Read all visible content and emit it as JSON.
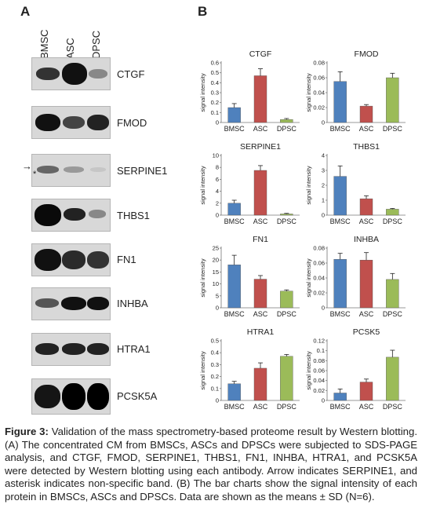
{
  "panels": {
    "a": "A",
    "b": "B"
  },
  "lanes": [
    "BMSC",
    "ASC",
    "DPSC"
  ],
  "blots": [
    {
      "protein": "CTGF"
    },
    {
      "protein": "FMOD"
    },
    {
      "protein": "SERPINE1",
      "arrow": "→",
      "asterisk": "*"
    },
    {
      "protein": "THBS1"
    },
    {
      "protein": "FN1"
    },
    {
      "protein": "INHBA"
    },
    {
      "protein": "HTRA1"
    },
    {
      "protein": "PCSK5A"
    }
  ],
  "colors": {
    "BMSC": "#4f81bd",
    "ASC": "#c0504d",
    "DPSC": "#9bbb59"
  },
  "chart_data": [
    {
      "type": "bar",
      "title": "CTGF",
      "ylabel": "signal intensity",
      "categories": [
        "BMSC",
        "ASC",
        "DPSC"
      ],
      "values": [
        0.15,
        0.47,
        0.03
      ],
      "errors": [
        0.04,
        0.07,
        0.01
      ],
      "ylim": [
        0,
        0.6
      ],
      "yticks": [
        "0",
        "0.1",
        "0.2",
        "0.3",
        "0.4",
        "0.5",
        "0.6"
      ],
      "ytick_values": [
        0,
        0.1,
        0.2,
        0.3,
        0.4,
        0.5,
        0.6
      ]
    },
    {
      "type": "bar",
      "title": "FMOD",
      "ylabel": "signal intensity",
      "categories": [
        "BMSC",
        "ASC",
        "DPSC"
      ],
      "values": [
        0.055,
        0.022,
        0.06
      ],
      "errors": [
        0.013,
        0.002,
        0.006
      ],
      "ylim": [
        0,
        0.08
      ],
      "yticks": [
        "0",
        "0.02",
        "0.04",
        "0.06",
        "0.08"
      ],
      "ytick_values": [
        0,
        0.02,
        0.04,
        0.06,
        0.08
      ]
    },
    {
      "type": "bar",
      "title": "SERPINE1",
      "ylabel": "signal intensity",
      "categories": [
        "BMSC",
        "ASC",
        "DPSC"
      ],
      "values": [
        2.0,
        7.5,
        0.2
      ],
      "errors": [
        0.5,
        0.8,
        0.1
      ],
      "ylim": [
        0,
        10
      ],
      "yticks": [
        "0",
        "2",
        "4",
        "6",
        "8",
        "10"
      ],
      "ytick_values": [
        0,
        2,
        4,
        6,
        8,
        10
      ]
    },
    {
      "type": "bar",
      "title": "THBS1",
      "ylabel": "signal intensity",
      "categories": [
        "BMSC",
        "ASC",
        "DPSC"
      ],
      "values": [
        2.6,
        1.1,
        0.4
      ],
      "errors": [
        0.7,
        0.2,
        0.05
      ],
      "ylim": [
        0,
        4
      ],
      "yticks": [
        "0",
        "1",
        "2",
        "3",
        "4"
      ],
      "ytick_values": [
        0,
        1,
        2,
        3,
        4
      ]
    },
    {
      "type": "bar",
      "title": "FN1",
      "ylabel": "signal intensity",
      "categories": [
        "BMSC",
        "ASC",
        "DPSC"
      ],
      "values": [
        18,
        12,
        7
      ],
      "errors": [
        4,
        1.5,
        0.5
      ],
      "ylim": [
        0,
        25
      ],
      "yticks": [
        "0",
        "5",
        "10",
        "15",
        "20",
        "25"
      ],
      "ytick_values": [
        0,
        5,
        10,
        15,
        20,
        25
      ]
    },
    {
      "type": "bar",
      "title": "INHBA",
      "ylabel": "signal intensity",
      "categories": [
        "BMSC",
        "ASC",
        "DPSC"
      ],
      "values": [
        0.065,
        0.064,
        0.038
      ],
      "errors": [
        0.008,
        0.01,
        0.008
      ],
      "ylim": [
        0,
        0.08
      ],
      "yticks": [
        "0",
        "0.02",
        "0.04",
        "0.06",
        "0.08"
      ],
      "ytick_values": [
        0,
        0.02,
        0.04,
        0.06,
        0.08
      ]
    },
    {
      "type": "bar",
      "title": "HTRA1",
      "ylabel": "signal intensity",
      "categories": [
        "BMSC",
        "ASC",
        "DPSC"
      ],
      "values": [
        0.14,
        0.27,
        0.37
      ],
      "errors": [
        0.02,
        0.045,
        0.015
      ],
      "ylim": [
        0,
        0.5
      ],
      "yticks": [
        "0",
        "0.1",
        "0.2",
        "0.3",
        "0.4",
        "0.5"
      ],
      "ytick_values": [
        0,
        0.1,
        0.2,
        0.3,
        0.4,
        0.5
      ]
    },
    {
      "type": "bar",
      "title": "PCSK5",
      "ylabel": "signal intensity",
      "categories": [
        "BMSC",
        "ASC",
        "DPSC"
      ],
      "values": [
        0.015,
        0.037,
        0.087
      ],
      "errors": [
        0.008,
        0.006,
        0.014
      ],
      "ylim": [
        0,
        0.12
      ],
      "yticks": [
        "0",
        "0.02",
        "0.04",
        "0.06",
        "0.08",
        "0.1",
        "0.12"
      ],
      "ytick_values": [
        0,
        0.02,
        0.04,
        0.06,
        0.08,
        0.1,
        0.12
      ]
    }
  ],
  "caption": {
    "label": "Figure 3:",
    "text": " Validation of the mass spectrometry-based proteome result by Western blotting. (A) The concentrated CM from BMSCs, ASCs and DPSCs were subjected to SDS-PAGE analysis, and CTGF, FMOD, SERPINE1, THBS1, FN1, INHBA, HTRA1, and PCSK5A were detected by Western blotting using each antibody. Arrow indicates SERPINE1, and asterisk indicates non-specific band. (B) The bar charts show the signal intensity of each protein in BMSCs, ASCs and DPSCs. Data are shown as the means ± SD (N=6)."
  }
}
